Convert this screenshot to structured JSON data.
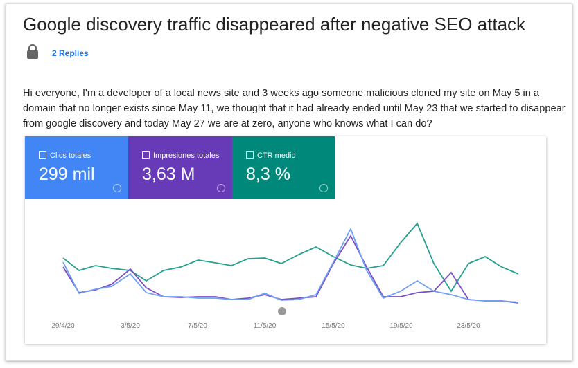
{
  "post": {
    "title": "Google discovery traffic disappeared after negative SEO attack",
    "replies": "2 Replies",
    "body": "Hi everyone, I'm a developer of a local news site and 3 weeks ago someone malicious cloned my site on May 5 in a domain that no longer exists since May 11, we thought that it had already ended until May 23 that we started to disappear from google discovery and today May 27 we are at zero, anyone who knows what I can do?"
  },
  "report": {
    "metrics": [
      {
        "label": "Clics totales",
        "value": "299 mil"
      },
      {
        "label": "Impresiones totales",
        "value": "3,63 M"
      },
      {
        "label": "CTR medio",
        "value": "8,3 %"
      }
    ],
    "dates": [
      "29/4/20",
      "3/5/20",
      "7/5/20",
      "11/5/20",
      "15/5/20",
      "19/5/20",
      "23/5/20"
    ]
  }
}
